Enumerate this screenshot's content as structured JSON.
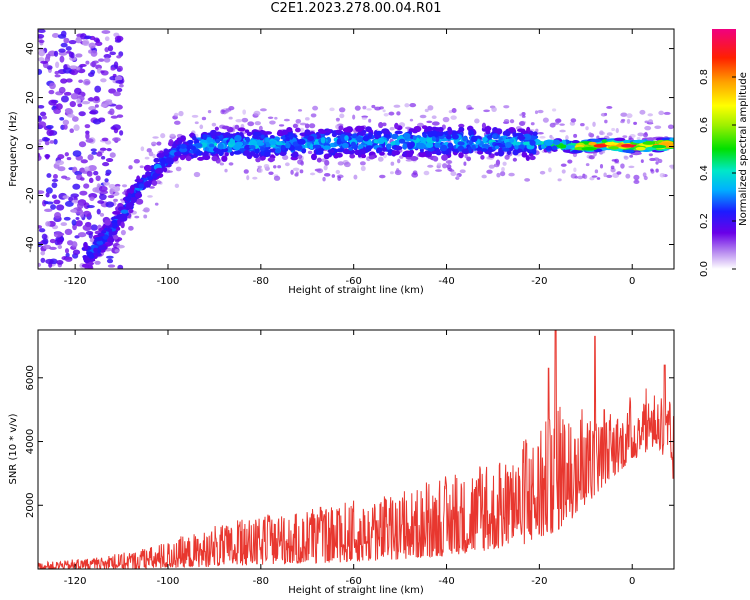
{
  "title": "C2E1.2023.278.00.04.R01",
  "chart_data": [
    {
      "type": "heatmap",
      "xlabel": "Height of straight line (km)",
      "ylabel": "Frequency (Hz)",
      "xlim": [
        -128,
        9
      ],
      "ylim": [
        -50,
        48
      ],
      "xticks": [
        -120,
        -100,
        -80,
        -60,
        -40,
        -20,
        0
      ],
      "xtick_labels": [
        "-120",
        "-100",
        "-80",
        "-60",
        "-40",
        "-20",
        "0"
      ],
      "yticks": [
        -40,
        -20,
        0,
        20,
        40
      ],
      "ytick_labels": [
        "-40",
        "-20",
        "0",
        "20",
        "40"
      ],
      "colorbar": {
        "label": "Normalized spectral amplitude",
        "range": [
          0,
          1
        ],
        "ticks": [
          0,
          0.2,
          0.4,
          0.6,
          0.8
        ],
        "tick_labels": [
          "0.0",
          "0.2",
          "0.4",
          "0.6",
          "0.8"
        ]
      },
      "ridge": [
        {
          "x": -117,
          "y": -44
        },
        {
          "x": -113,
          "y": -36
        },
        {
          "x": -110,
          "y": -28
        },
        {
          "x": -107,
          "y": -19
        },
        {
          "x": -104,
          "y": -12
        },
        {
          "x": -101,
          "y": -6
        },
        {
          "x": -98,
          "y": -1
        },
        {
          "x": -95,
          "y": 0
        },
        {
          "x": -90,
          "y": 1
        },
        {
          "x": -80,
          "y": 1
        },
        {
          "x": -70,
          "y": 1
        },
        {
          "x": -60,
          "y": 2
        },
        {
          "x": -50,
          "y": 2
        },
        {
          "x": -40,
          "y": 2
        },
        {
          "x": -30,
          "y": 2
        },
        {
          "x": -20,
          "y": 1
        },
        {
          "x": -12,
          "y": 0
        },
        {
          "x": -5,
          "y": 1
        },
        {
          "x": 0,
          "y": 0
        },
        {
          "x": 9,
          "y": 1
        }
      ],
      "grid": false
    },
    {
      "type": "line",
      "xlabel": "Height of straight line (km)",
      "ylabel": "SNR (10 * v/v)",
      "xlim": [
        -128,
        9
      ],
      "ylim": [
        0,
        7500
      ],
      "xticks": [
        -120,
        -100,
        -80,
        -60,
        -40,
        -20,
        0
      ],
      "xtick_labels": [
        "-120",
        "-100",
        "-80",
        "-60",
        "-40",
        "-20",
        "0"
      ],
      "yticks": [
        2000,
        4000,
        6000
      ],
      "ytick_labels": [
        "2000",
        "4000",
        "6000"
      ],
      "series": [
        {
          "color": "#e8372f",
          "envelope": [
            {
              "x": -128,
              "lo": 0,
              "hi": 200
            },
            {
              "x": -115,
              "lo": 0,
              "hi": 350
            },
            {
              "x": -105,
              "lo": 0,
              "hi": 650
            },
            {
              "x": -95,
              "lo": 50,
              "hi": 1100
            },
            {
              "x": -85,
              "lo": 100,
              "hi": 1500
            },
            {
              "x": -75,
              "lo": 150,
              "hi": 1700
            },
            {
              "x": -65,
              "lo": 200,
              "hi": 1900
            },
            {
              "x": -55,
              "lo": 250,
              "hi": 2200
            },
            {
              "x": -45,
              "lo": 350,
              "hi": 2600
            },
            {
              "x": -35,
              "lo": 500,
              "hi": 3000
            },
            {
              "x": -25,
              "lo": 700,
              "hi": 3600
            },
            {
              "x": -20,
              "lo": 900,
              "hi": 4500
            },
            {
              "x": -15,
              "lo": 1300,
              "hi": 5200
            },
            {
              "x": -10,
              "lo": 2000,
              "hi": 4800
            },
            {
              "x": -5,
              "lo": 2800,
              "hi": 4800
            },
            {
              "x": 0,
              "lo": 3400,
              "hi": 5200
            },
            {
              "x": 5,
              "lo": 3800,
              "hi": 6000
            },
            {
              "x": 9,
              "lo": 2700,
              "hi": 5000
            }
          ],
          "peaks": [
            {
              "x": -18,
              "y": 6300
            },
            {
              "x": -16.5,
              "y": 7500
            },
            {
              "x": -8,
              "y": 7300
            },
            {
              "x": -6,
              "y": 5000
            },
            {
              "x": 7,
              "y": 6400
            }
          ]
        }
      ],
      "grid": false
    }
  ]
}
